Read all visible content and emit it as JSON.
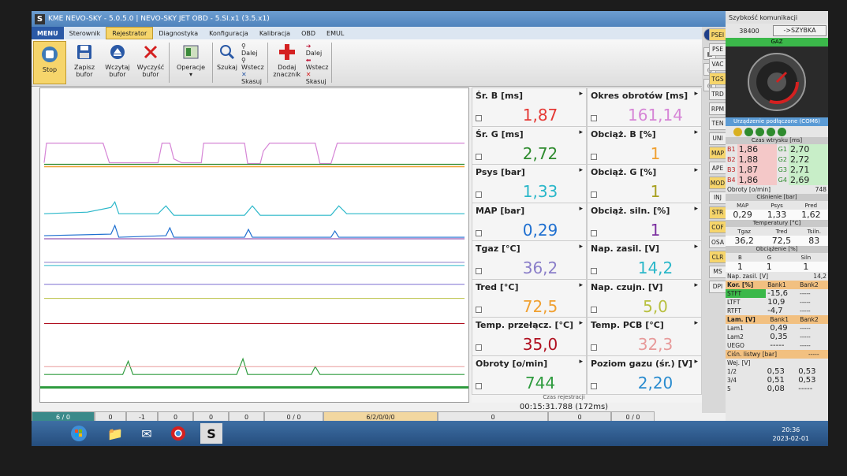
{
  "window": {
    "title": "KME NEVO-SKY - 5.0.5.0  |  NEVO-SKY JET OBD - 5.SI.x1 (3.5.x1)"
  },
  "menu": {
    "items": [
      "MENU",
      "Sterownik",
      "Rejestrator",
      "Diagnostyka",
      "Konfiguracja",
      "Kalibracja",
      "OBD",
      "EMUL"
    ],
    "active": "Rejestrator"
  },
  "ribbon": {
    "stop": "Stop",
    "save_buffer": [
      "Zapisz",
      "bufor"
    ],
    "load_buffer": [
      "Wczytaj",
      "bufor"
    ],
    "clear_buffer": [
      "Wyczyść",
      "bufor"
    ],
    "operations": "Operacje",
    "search": "Szukaj",
    "next": "Dalej",
    "back": "Wstecz",
    "delete": "Skasuj",
    "add_marker": [
      "Dodaj",
      "znacznik"
    ],
    "next2": "Dalej",
    "back2": "Wstecz",
    "delete2": "Skasuj"
  },
  "gauges": [
    {
      "label": "Śr. B  [ms]",
      "value": "1,87",
      "color": "#e53935"
    },
    {
      "label": "Okres obrotów  [ms]",
      "value": "161,14",
      "color": "#d685d6"
    },
    {
      "label": "Śr. G  [ms]",
      "value": "2,72",
      "color": "#2e8b2e"
    },
    {
      "label": "Obciąż. B  [%]",
      "value": "1",
      "color": "#f0a030"
    },
    {
      "label": "Psys  [bar]",
      "value": "1,33",
      "color": "#2ab7c9"
    },
    {
      "label": "Obciąż. G  [%]",
      "value": "1",
      "color": "#a8a020"
    },
    {
      "label": "MAP  [bar]",
      "value": "0,29",
      "color": "#1e6fd0"
    },
    {
      "label": "Obciąż. siln.  [%]",
      "value": "1",
      "color": "#7b2fa0"
    },
    {
      "label": "Tgaz  [°C]",
      "value": "36,2",
      "color": "#8a7ec9"
    },
    {
      "label": "Nap. zasil.  [V]",
      "value": "14,2",
      "color": "#2ab7c9"
    },
    {
      "label": "Tred  [°C]",
      "value": "72,5",
      "color": "#f0a030"
    },
    {
      "label": "Nap. czujn.  [V]",
      "value": "5,0",
      "color": "#b8c040"
    },
    {
      "label": "Temp. przełącz.  [°C]",
      "value": "35,0",
      "color": "#b01020"
    },
    {
      "label": "Temp. PCB  [°C]",
      "value": "32,3",
      "color": "#e79a9a"
    },
    {
      "label": "Obroty  [o/min]",
      "value": "744",
      "color": "#2e9b3e"
    },
    {
      "label": "Poziom gazu (śr.)  [V]",
      "value": "2,20",
      "color": "#2a8ccf"
    }
  ],
  "recording": {
    "label": "Czas rejestracji",
    "time": "00:15:31.788  (172ms)"
  },
  "status_cells": [
    "6 / 0",
    "0",
    "-1",
    "0",
    "0",
    "0",
    "0 / 0",
    "6/2/0/0/0",
    "0",
    "0",
    "0 / 0"
  ],
  "side_buttons": [
    "PSEI",
    "PSE",
    "VAC",
    "TGS",
    "TRD",
    "RPM",
    "TEN",
    "UNI",
    "MAP",
    "APE",
    "MOD",
    "INJ",
    "STR",
    "COF",
    "OSA",
    "CLR",
    "MS",
    "DPI"
  ],
  "right": {
    "speed_label": "Szybkość komunikacji",
    "speed_value": "38400",
    "speed_button": "->SZYBKA",
    "gaz": "GAZ",
    "connected": "Urządzenie podłączone (COM6)",
    "injection_title": "Czas wtrysku [ms]",
    "injection": [
      {
        "b": "B1",
        "bv": "1,86",
        "g": "G1",
        "gv": "2,70"
      },
      {
        "b": "B2",
        "bv": "1,88",
        "g": "G2",
        "gv": "2,72"
      },
      {
        "b": "B3",
        "bv": "1,87",
        "g": "G3",
        "gv": "2,71"
      },
      {
        "b": "B4",
        "bv": "1,86",
        "g": "G4",
        "gv": "2,69"
      }
    ],
    "rpm_label": "Obroty  [o/min]",
    "rpm_value": "748",
    "pressure_title": "Ciśnienie [bar]",
    "pressure_headers": [
      "MAP",
      "Psys",
      "Pred"
    ],
    "pressure_values": [
      "0,29",
      "1,33",
      "1,62"
    ],
    "temp_title": "Temperatury [°C]",
    "temp_headers": [
      "Tgaz",
      "Tred",
      "Tsiln."
    ],
    "temp_values": [
      "36,2",
      "72,5",
      "83"
    ],
    "load_title": "Obciążenie [%]",
    "load_headers": [
      "B",
      "G",
      "Siln"
    ],
    "load_values": [
      "1",
      "1",
      "1"
    ],
    "voltage_label": "Nap. zasil.  [V]",
    "voltage_value": "14,2",
    "kor_headers": [
      "Kor. [%]",
      "Bank1",
      "Bank2"
    ],
    "kor_rows": [
      {
        "name": "STFT",
        "b1": "-15,6",
        "b2": "-----"
      },
      {
        "name": "LTFT",
        "b1": "10,9",
        "b2": "-----"
      },
      {
        "name": "RTFT",
        "b1": "-4,7",
        "b2": "-----"
      }
    ],
    "lam_headers": [
      "Lam. [V]",
      "Bank1",
      "Bank2"
    ],
    "lam_rows": [
      {
        "name": "Lam1",
        "b1": "0,49",
        "b2": "-----"
      },
      {
        "name": "Lam2",
        "b1": "0,35",
        "b2": "-----"
      },
      {
        "name": "UEGO",
        "b1": "-----",
        "b2": "-----"
      }
    ],
    "rail_label": "Ciśn. listwy  [bar]",
    "rail_value": "-----",
    "wej_label": "Wej. [V]",
    "wej_rows": [
      {
        "name": "1/2",
        "a": "0,53",
        "b": "0,53"
      },
      {
        "name": "3/4",
        "a": "0,51",
        "b": "0,53"
      },
      {
        "name": "5",
        "a": "0,08",
        "b": "-----"
      }
    ]
  },
  "taskbar": {
    "time": "20:36",
    "date": "2023-02-01"
  }
}
